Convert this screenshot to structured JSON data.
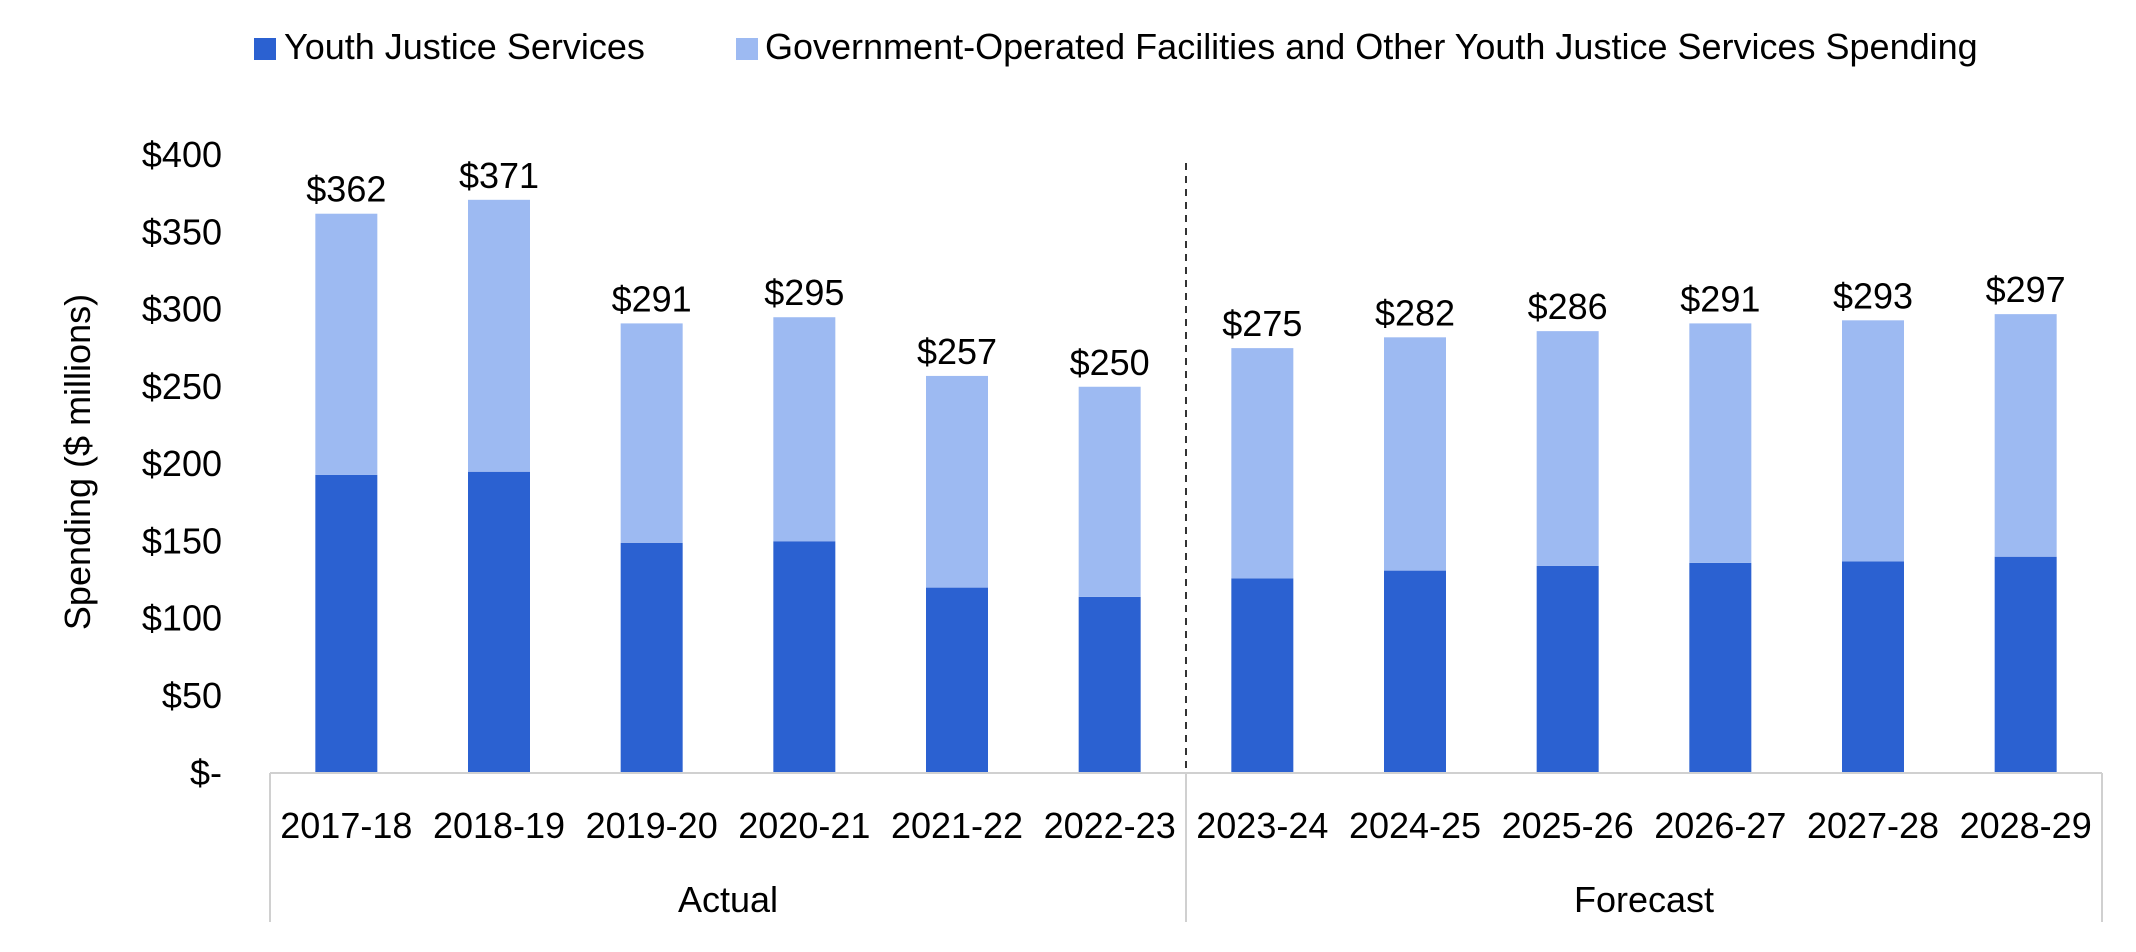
{
  "colors": {
    "series_dark": "#2b61d1",
    "series_light": "#9dbaf2",
    "axis_line": "#d0d0d0",
    "divider": "#333333",
    "text": "#000000"
  },
  "chart_data": {
    "type": "bar",
    "stacked": true,
    "title": "",
    "ylabel": "Spending ($ millions)",
    "xlabel": "",
    "ylim": [
      0,
      400
    ],
    "y_ticks": [
      0,
      50,
      100,
      150,
      200,
      250,
      300,
      350,
      400
    ],
    "y_tick_labels": [
      "$-",
      "$50",
      "$100",
      "$150",
      "$200",
      "$250",
      "$300",
      "$350",
      "$400"
    ],
    "grid": false,
    "legend_position": "top",
    "categories": [
      "2017-18",
      "2018-19",
      "2019-20",
      "2020-21",
      "2021-22",
      "2022-23",
      "2023-24",
      "2024-25",
      "2025-26",
      "2026-27",
      "2027-28",
      "2028-29"
    ],
    "groups": [
      {
        "label": "Actual",
        "categories": [
          "2017-18",
          "2018-19",
          "2019-20",
          "2020-21",
          "2021-22",
          "2022-23"
        ]
      },
      {
        "label": "Forecast",
        "categories": [
          "2023-24",
          "2024-25",
          "2025-26",
          "2026-27",
          "2027-28",
          "2028-29"
        ]
      }
    ],
    "series": [
      {
        "name": "Youth Justice Services",
        "color": "#2b61d1",
        "values": [
          193,
          195,
          149,
          150,
          120,
          114,
          126,
          131,
          134,
          136,
          137,
          140
        ]
      },
      {
        "name": "Government-Operated Facilities and Other Youth Justice Services Spending",
        "color": "#9dbaf2",
        "values": [
          169,
          176,
          142,
          145,
          137,
          136,
          149,
          151,
          152,
          155,
          156,
          157
        ]
      }
    ],
    "totals": [
      362,
      371,
      291,
      295,
      257,
      250,
      275,
      282,
      286,
      291,
      293,
      297
    ],
    "total_labels": [
      "$362",
      "$371",
      "$291",
      "$295",
      "$257",
      "$250",
      "$275",
      "$282",
      "$286",
      "$291",
      "$293",
      "$297"
    ]
  }
}
